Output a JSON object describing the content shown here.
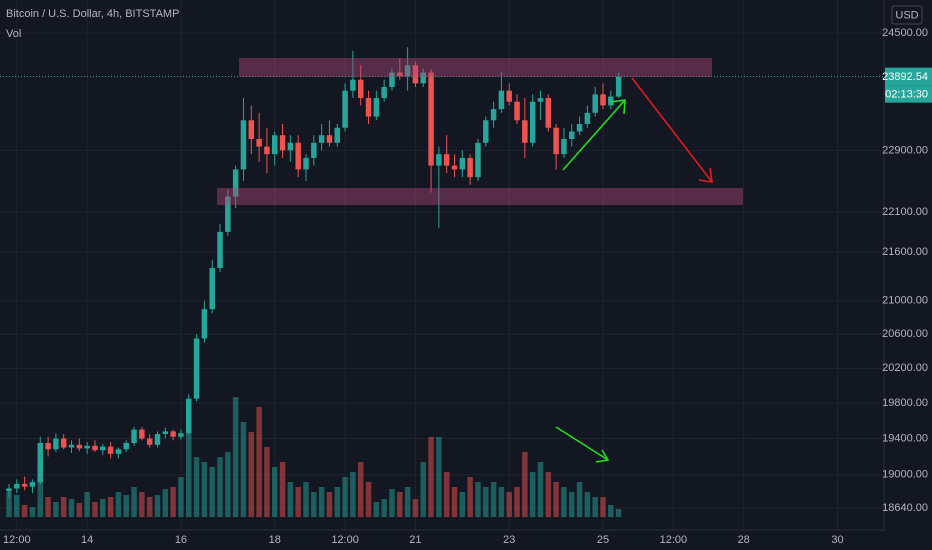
{
  "chart_data": {
    "type": "candlestick",
    "title": "Bitcoin / U.S. Dollar, 4h, BITSTAMP",
    "volume_label": "Vol",
    "currency": "USD",
    "countdown": "02:13:30",
    "log_scale": true,
    "grid": true,
    "up_color": "#26a69a",
    "down_color": "#ef5350",
    "x": [
      272,
      276,
      280,
      284,
      288,
      292,
      296,
      300,
      304,
      308,
      312,
      316,
      320,
      324,
      328,
      332,
      336,
      340,
      344,
      348,
      352,
      356,
      360,
      364,
      368,
      372,
      376,
      380,
      384,
      388,
      392,
      396,
      400,
      404,
      408,
      412,
      416,
      420,
      424,
      428,
      432,
      436,
      440,
      444,
      448,
      452,
      456,
      460,
      464,
      468,
      472,
      476,
      480,
      484,
      488,
      492,
      496,
      500,
      504,
      508,
      512,
      516,
      520,
      524,
      528,
      532,
      536,
      540,
      544,
      548,
      552,
      556,
      560,
      564,
      568,
      572,
      576,
      580,
      584
    ],
    "open": [
      18820,
      18850,
      18900,
      18870,
      18920,
      19350,
      19280,
      19400,
      19300,
      19330,
      19290,
      19320,
      19270,
      19310,
      19230,
      19280,
      19350,
      19500,
      19400,
      19330,
      19450,
      19480,
      19420,
      19460,
      19850,
      20550,
      20900,
      21400,
      21850,
      22300,
      22650,
      23300,
      23050,
      22950,
      22850,
      23100,
      22900,
      23000,
      22650,
      22800,
      23000,
      23100,
      23000,
      23200,
      23700,
      23850,
      23600,
      23350,
      23600,
      23750,
      23950,
      23900,
      24050,
      23800,
      23950,
      22700,
      22850,
      22700,
      22650,
      22800,
      22550,
      23000,
      23300,
      23450,
      23700,
      23550,
      23300,
      23000,
      23550,
      23600,
      23200,
      22850,
      23050,
      23150,
      23250,
      23400,
      23650,
      23500,
      23620
    ],
    "high": [
      18900,
      18950,
      18980,
      18950,
      19420,
      19420,
      19460,
      19450,
      19380,
      19400,
      19360,
      19380,
      19340,
      19360,
      19300,
      19380,
      19530,
      19530,
      19450,
      19480,
      19520,
      19500,
      19500,
      19900,
      20600,
      21000,
      21500,
      21950,
      22400,
      22700,
      23600,
      23500,
      23400,
      23200,
      23150,
      23250,
      23100,
      23100,
      22850,
      23100,
      23250,
      23300,
      23250,
      23800,
      24250,
      24050,
      23700,
      23700,
      23850,
      24000,
      24150,
      24300,
      24100,
      24000,
      24000,
      22950,
      23100,
      22850,
      22900,
      22850,
      23050,
      23350,
      23550,
      23950,
      23800,
      23650,
      23600,
      23650,
      23700,
      23650,
      23250,
      23200,
      23250,
      23350,
      23500,
      23750,
      23800,
      23700,
      23950
    ],
    "low": [
      18760,
      18800,
      18830,
      18800,
      18900,
      19200,
      19250,
      19280,
      19240,
      19260,
      19230,
      19250,
      19220,
      19180,
      19180,
      19250,
      19320,
      19380,
      19300,
      19300,
      19400,
      19380,
      19390,
      19440,
      19820,
      20500,
      20850,
      21350,
      21800,
      22150,
      22500,
      22850,
      22750,
      22600,
      22700,
      22800,
      22750,
      22550,
      22500,
      22700,
      22900,
      22950,
      22950,
      23150,
      23600,
      23500,
      23250,
      23300,
      23550,
      23700,
      23850,
      23700,
      23750,
      23750,
      22350,
      21900,
      22600,
      22550,
      22550,
      22450,
      22500,
      22950,
      23200,
      23400,
      23500,
      23250,
      22800,
      22950,
      23300,
      23150,
      22650,
      22800,
      22950,
      23100,
      23200,
      23350,
      23450,
      23450,
      23600
    ],
    "close": [
      18850,
      18900,
      18870,
      18920,
      19350,
      19280,
      19400,
      19300,
      19330,
      19290,
      19320,
      19270,
      19310,
      19230,
      19280,
      19350,
      19500,
      19400,
      19330,
      19450,
      19480,
      19420,
      19460,
      19850,
      20550,
      20900,
      21400,
      21850,
      22300,
      22650,
      23300,
      23050,
      22950,
      22850,
      23100,
      22900,
      23000,
      22650,
      22800,
      23000,
      23100,
      23000,
      23200,
      23700,
      23850,
      23600,
      23350,
      23600,
      23750,
      23950,
      23900,
      24050,
      23800,
      23950,
      22700,
      22850,
      22700,
      22650,
      22800,
      22550,
      23000,
      23300,
      23450,
      23700,
      23550,
      23300,
      23000,
      23550,
      23600,
      23200,
      22850,
      23050,
      23150,
      23250,
      23400,
      23650,
      23500,
      23620,
      23892.54
    ],
    "volume": [
      25,
      22,
      12,
      10,
      55,
      20,
      15,
      20,
      18,
      14,
      25,
      15,
      18,
      20,
      25,
      22,
      30,
      25,
      20,
      22,
      28,
      30,
      40,
      115,
      60,
      55,
      50,
      60,
      65,
      120,
      95,
      85,
      110,
      70,
      50,
      55,
      35,
      30,
      35,
      25,
      30,
      25,
      30,
      40,
      45,
      55,
      35,
      15,
      18,
      28,
      25,
      30,
      18,
      55,
      80,
      80,
      45,
      30,
      25,
      40,
      35,
      30,
      35,
      30,
      25,
      30,
      65,
      45,
      55,
      45,
      35,
      30,
      25,
      35,
      25,
      20,
      20,
      12,
      8
    ],
    "xlim": [
      267.4,
      719.8
    ],
    "ylim": [
      18405,
      24970
    ],
    "xticks": [
      {
        "value": 276,
        "label": "12:00"
      },
      {
        "value": 312,
        "label": "14"
      },
      {
        "value": 360,
        "label": "16"
      },
      {
        "value": 408,
        "label": "18"
      },
      {
        "value": 444,
        "label": "12:00"
      },
      {
        "value": 480,
        "label": "21"
      },
      {
        "value": 528,
        "label": "23"
      },
      {
        "value": 576,
        "label": "25"
      },
      {
        "value": 612,
        "label": "12:00"
      },
      {
        "value": 648,
        "label": "28"
      },
      {
        "value": 696,
        "label": "30"
      }
    ],
    "yticks": [
      {
        "value": 24500,
        "label": "24500.00"
      },
      {
        "value": 22900,
        "label": "22900.00"
      },
      {
        "value": 22100,
        "label": "22100.00"
      },
      {
        "value": 21600,
        "label": "21600.00"
      },
      {
        "value": 21000,
        "label": "21000.00"
      },
      {
        "value": 20600,
        "label": "20600.00"
      },
      {
        "value": 20200,
        "label": "20200.00"
      },
      {
        "value": 19800,
        "label": "19800.00"
      },
      {
        "value": 19400,
        "label": "19400.00"
      },
      {
        "value": 19000,
        "label": "19000.00"
      },
      {
        "value": 18640,
        "label": "18640.00"
      }
    ]
  }
}
